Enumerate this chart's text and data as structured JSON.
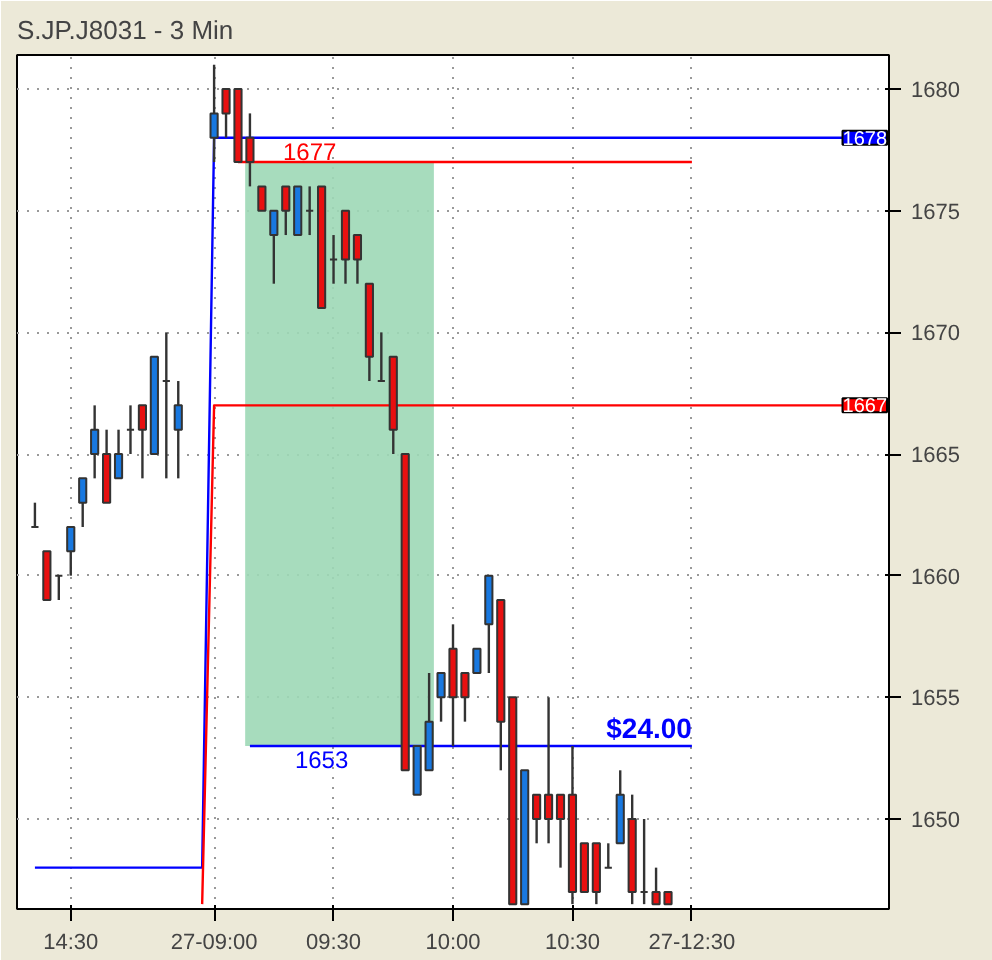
{
  "chart_data": {
    "type": "candlestick",
    "title": "S.JP.J8031 - 3 Min",
    "categories": [
      null,
      null,
      null,
      null,
      "14:30",
      null,
      null,
      null,
      null,
      null,
      null,
      null,
      null,
      null,
      null,
      null,
      "27-09:00",
      null,
      null,
      null,
      null,
      null,
      null,
      null,
      null,
      null,
      "09:30",
      null,
      null,
      null,
      null,
      null,
      null,
      null,
      null,
      null,
      "10:00",
      null,
      null,
      null,
      null,
      null,
      null,
      null,
      null,
      null,
      "10:30",
      null,
      null,
      null,
      null,
      null,
      null,
      null,
      null,
      null,
      "27-12:30",
      null,
      null,
      null,
      null,
      null,
      null,
      null,
      null,
      null,
      null,
      null,
      null,
      null,
      null,
      null,
      null
    ],
    "ohlc": [
      null,
      [
        1662,
        1663,
        1662,
        1662
      ],
      [
        1661,
        1661,
        1659,
        1659
      ],
      [
        1660,
        1660,
        1659,
        1660
      ],
      [
        1661,
        1662,
        1660,
        1662
      ],
      [
        1663,
        1664,
        1662,
        1664
      ],
      [
        1665,
        1667,
        1664,
        1666
      ],
      [
        1665,
        1666,
        1663,
        1663
      ],
      [
        1664,
        1666,
        1664,
        1665
      ],
      [
        1666,
        1667,
        1665,
        1666
      ],
      [
        1667,
        1667,
        1664,
        1666
      ],
      [
        1665,
        1669,
        1665,
        1669
      ],
      [
        1668,
        1670,
        1664,
        1668
      ],
      [
        1666,
        1668,
        1664,
        1667
      ],
      null,
      null,
      [
        1678,
        1681,
        1677,
        1679
      ],
      [
        1680,
        1680,
        1678,
        1679
      ],
      [
        1680,
        1680,
        1677,
        1677
      ],
      [
        1678,
        1679,
        1676,
        1677
      ],
      [
        1676,
        1676,
        1675,
        1675
      ],
      [
        1674,
        1675,
        1672,
        1675
      ],
      [
        1676,
        1676,
        1674,
        1675
      ],
      [
        1674,
        1676,
        1674,
        1676
      ],
      [
        1675,
        1676,
        1674,
        1675
      ],
      [
        1676,
        1676,
        1671,
        1671
      ],
      [
        1673,
        1674,
        1672,
        1673
      ],
      [
        1675,
        1675,
        1672,
        1673
      ],
      [
        1674,
        1674,
        1672,
        1673
      ],
      [
        1672,
        1672,
        1668,
        1669
      ],
      [
        1668,
        1670,
        1668,
        1668
      ],
      [
        1669,
        1669,
        1665,
        1666
      ],
      [
        1665,
        1665,
        1652,
        1652
      ],
      [
        1651,
        1653,
        1651,
        1653
      ],
      [
        1652,
        1656,
        1652,
        1654
      ],
      [
        1655,
        1656,
        1654,
        1656
      ],
      [
        1657,
        1658,
        1653,
        1655
      ],
      [
        1656,
        1656,
        1654,
        1655
      ],
      [
        1656,
        1657,
        1656,
        1657
      ],
      [
        1658,
        1660,
        1656,
        1660
      ],
      [
        1659,
        1659,
        1652,
        1654
      ],
      [
        1655,
        1655,
        1646.5,
        1646.5
      ],
      [
        1646.5,
        1652,
        1646.5,
        1652
      ],
      [
        1651,
        1651,
        1649,
        1650
      ],
      [
        1651,
        1655,
        1649,
        1650
      ],
      [
        1651,
        1651,
        1648,
        1650
      ],
      [
        1651,
        1653,
        1646.5,
        1647
      ],
      [
        1649,
        1649,
        1647,
        1647
      ],
      [
        1649,
        1649,
        1646.5,
        1647
      ],
      [
        1648,
        1649,
        1648,
        1648
      ],
      [
        1649,
        1652,
        1649,
        1651
      ],
      [
        1650,
        1651,
        1646.5,
        1647
      ],
      [
        1647,
        1650,
        1646.5,
        1647
      ],
      [
        1647,
        1648,
        1646.5,
        1646.5
      ],
      [
        1647,
        1647,
        1646.5,
        1646.5
      ],
      null,
      null,
      null,
      null,
      null,
      null,
      null,
      null,
      null,
      null,
      null,
      null,
      null,
      null,
      null,
      null,
      null,
      null
    ],
    "colors": [
      null,
      "#333333",
      "#e81010",
      "#333333",
      "#1878e0",
      "#1878e0",
      "#1878e0",
      "#e81010",
      "#1878e0",
      "#333333",
      "#e81010",
      "#1878e0",
      "#333333",
      "#1878e0",
      null,
      null,
      "#1878e0",
      "#e81010",
      "#e81010",
      "#e81010",
      "#e81010",
      "#1878e0",
      "#e81010",
      "#1878e0",
      "#333333",
      "#e81010",
      "#333333",
      "#e81010",
      "#e81010",
      "#e81010",
      "#333333",
      "#e81010",
      "#e81010",
      "#1878e0",
      "#1878e0",
      "#1878e0",
      "#e81010",
      "#e81010",
      "#1878e0",
      "#1878e0",
      "#e81010",
      "#e81010",
      "#1878e0",
      "#e81010",
      "#e81010",
      "#e81010",
      "#e81010",
      "#e81010",
      "#e81010",
      "#333333",
      "#1878e0",
      "#e81010",
      "#333333",
      "#e81010",
      "#e81010",
      null,
      null,
      null,
      null,
      null,
      null,
      null,
      null,
      null,
      null,
      null,
      null,
      null,
      null,
      null,
      null,
      null,
      null
    ],
    "series": [
      {
        "type": "line",
        "color": "#0000ff",
        "values": [
          null,
          1648,
          1648,
          1648,
          1648,
          1648,
          1648,
          1648,
          1648,
          1648,
          1648,
          1648,
          1648,
          1648,
          1648,
          1648,
          1678,
          1678,
          1678,
          1678,
          1678,
          1678,
          1678,
          1678,
          1678,
          1678,
          1678,
          1678,
          1678,
          1678,
          1678,
          1678,
          1678,
          1678,
          1678,
          1678,
          1678,
          1678,
          1678,
          1678,
          1678,
          1678,
          1678,
          1678,
          1678,
          1678,
          1678,
          1678,
          1678,
          1678,
          1678,
          1678,
          1678,
          1678,
          1678,
          1678,
          1678,
          1678,
          1678,
          1678,
          1678,
          1678,
          1678,
          1678,
          1678,
          1678,
          1678,
          1678,
          1678,
          1678,
          null,
          null,
          null
        ]
      },
      {
        "type": "line",
        "color": "#ff0000",
        "values": [
          null,
          null,
          null,
          null,
          null,
          null,
          null,
          null,
          null,
          null,
          null,
          null,
          null,
          null,
          null,
          1646.5,
          1667,
          1667,
          1667,
          1667,
          1667,
          1667,
          1667,
          1667,
          1667,
          1667,
          1667,
          1667,
          1667,
          1667,
          1667,
          1667,
          1667,
          1667,
          1667,
          1667,
          1667,
          1667,
          1667,
          1667,
          1667,
          1667,
          1667,
          1667,
          1667,
          1667,
          1667,
          1667,
          1667,
          1667,
          1667,
          1667,
          1667,
          1667,
          1667,
          1667,
          1667,
          1667,
          1667,
          1667,
          1667,
          1667,
          1667,
          1667,
          1667,
          1667,
          1667,
          1667,
          1667,
          1667,
          null,
          null,
          null
        ]
      },
      {
        "type": "line",
        "color": "#ff0000",
        "values": [
          null,
          null,
          null,
          null,
          null,
          null,
          null,
          null,
          null,
          null,
          null,
          null,
          null,
          null,
          null,
          null,
          null,
          null,
          1677,
          1677,
          1677,
          1677,
          1677,
          1677,
          1677,
          1677,
          1677,
          1677,
          1677,
          1677,
          1677,
          1677,
          1677,
          1677,
          1677,
          1677,
          1677,
          1677,
          1677,
          1677,
          1677,
          1677,
          1677,
          1677,
          1677,
          1677,
          1677,
          1677,
          1677,
          1677,
          1677,
          1677,
          1677,
          1677,
          1677,
          1677,
          1677,
          null,
          null,
          null,
          null,
          null,
          null,
          null,
          null,
          null,
          null,
          null,
          null,
          null,
          null,
          null,
          null
        ]
      },
      {
        "type": "line",
        "color": "#0000ff",
        "values": [
          null,
          null,
          null,
          null,
          null,
          null,
          null,
          null,
          null,
          null,
          null,
          null,
          null,
          null,
          null,
          null,
          null,
          null,
          null,
          1653,
          1653,
          1653,
          1653,
          1653,
          1653,
          1653,
          1653,
          1653,
          1653,
          1653,
          1653,
          1653,
          1653,
          1653,
          1653,
          1653,
          1653,
          1653,
          1653,
          1653,
          1653,
          1653,
          1653,
          1653,
          1653,
          1653,
          1653,
          1653,
          1653,
          1653,
          1653,
          1653,
          1653,
          1653,
          1653,
          1653,
          1653,
          null,
          null,
          null,
          null,
          null,
          null,
          null,
          null,
          null,
          null,
          null,
          null,
          null,
          null,
          null,
          null
        ]
      }
    ],
    "annotations": [
      {
        "text": "1677",
        "y": 1677
      },
      {
        "text": "1653",
        "y": 1653
      },
      {
        "text": "$24.00",
        "y": 1653
      },
      {
        "text": "1678",
        "y": 1678
      },
      {
        "text": "1667",
        "y": 1667
      }
    ],
    "bands": [
      {
        "axis": "y",
        "from": 1653,
        "to": 1677,
        "color": "#9dd8b6"
      }
    ],
    "ylim": [
      1646.3,
      1681.4
    ],
    "yticks": [
      1650,
      1655,
      1660,
      1665,
      1670,
      1675,
      1680
    ],
    "grid": true
  }
}
